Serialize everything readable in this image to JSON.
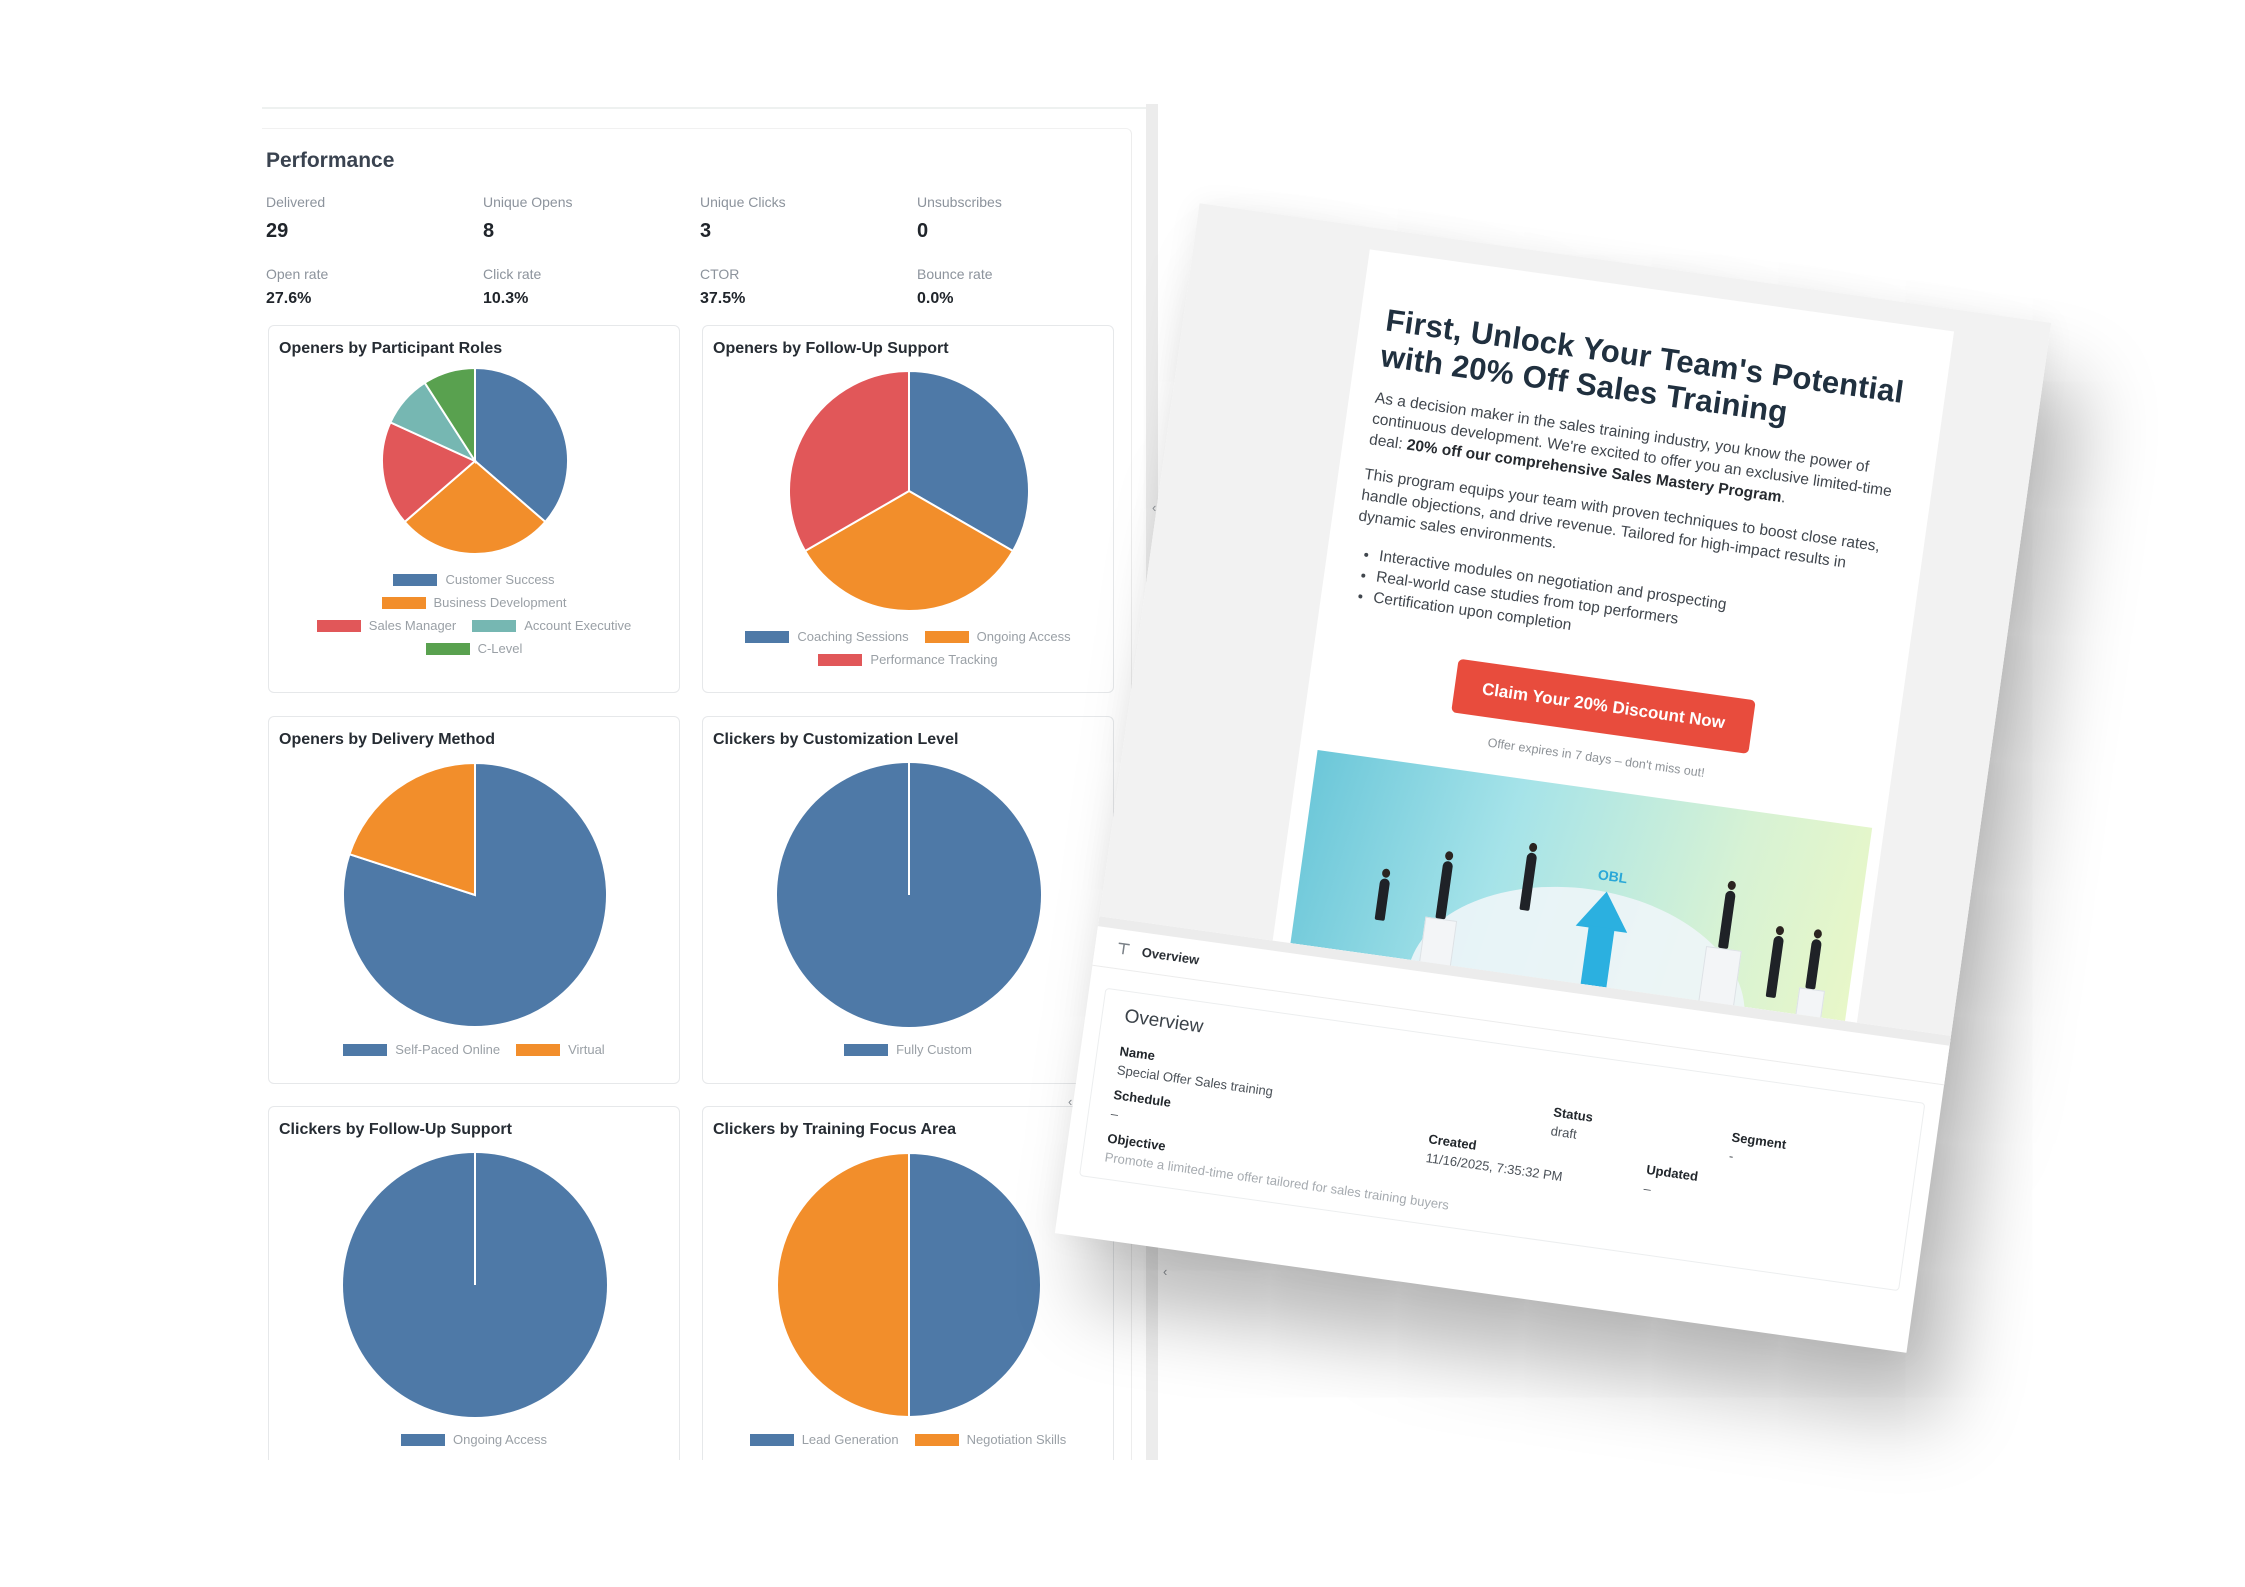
{
  "performance": {
    "title": "Performance",
    "metrics": [
      {
        "label": "Delivered",
        "value": "29"
      },
      {
        "label": "Unique Opens",
        "value": "8"
      },
      {
        "label": "Unique Clicks",
        "value": "3"
      },
      {
        "label": "Unsubscribes",
        "value": "0"
      }
    ],
    "rates": [
      {
        "label": "Open rate",
        "value": "27.6%"
      },
      {
        "label": "Click rate",
        "value": "10.3%"
      },
      {
        "label": "CTOR",
        "value": "37.5%"
      },
      {
        "label": "Bounce rate",
        "value": "0.0%"
      }
    ]
  },
  "colors": {
    "blue": "#4e79a7",
    "orange": "#f28e2b",
    "red": "#e15759",
    "teal": "#76b7b2",
    "green": "#59a14f",
    "cta": "#e84c3d"
  },
  "chart_data": [
    {
      "type": "pie",
      "title": "Openers by Participant Roles",
      "categories": [
        "Customer Success",
        "Business Development",
        "Sales Manager",
        "Account Executive",
        "C-Level"
      ],
      "values": [
        36.4,
        27.3,
        18.2,
        9.1,
        9.1
      ],
      "colors": [
        "#4e79a7",
        "#f28e2b",
        "#e15759",
        "#76b7b2",
        "#59a14f"
      ],
      "legend_position": "bottom"
    },
    {
      "type": "pie",
      "title": "Openers by Follow-Up Support",
      "categories": [
        "Coaching Sessions",
        "Ongoing Access",
        "Performance Tracking"
      ],
      "values": [
        33.3,
        33.3,
        33.3
      ],
      "colors": [
        "#4e79a7",
        "#f28e2b",
        "#e15759"
      ],
      "legend_position": "bottom"
    },
    {
      "type": "pie",
      "title": "Openers by Delivery Method",
      "categories": [
        "Self-Paced Online",
        "Virtual"
      ],
      "values": [
        80,
        20
      ],
      "colors": [
        "#4e79a7",
        "#f28e2b"
      ],
      "legend_position": "bottom"
    },
    {
      "type": "pie",
      "title": "Clickers by Customization Level",
      "categories": [
        "Fully Custom"
      ],
      "values": [
        100
      ],
      "colors": [
        "#4e79a7"
      ],
      "legend_position": "bottom"
    },
    {
      "type": "pie",
      "title": "Clickers by Follow-Up Support",
      "categories": [
        "Ongoing Access"
      ],
      "values": [
        100
      ],
      "colors": [
        "#4e79a7"
      ],
      "legend_position": "bottom"
    },
    {
      "type": "pie",
      "title": "Clickers by Training Focus Area",
      "categories": [
        "Lead Generation",
        "Negotiation Skills"
      ],
      "values": [
        50,
        50
      ],
      "colors": [
        "#4e79a7",
        "#f28e2b"
      ],
      "legend_position": "bottom"
    }
  ],
  "email": {
    "headline": "First, Unlock Your Team's Potential with 20% Off Sales Training",
    "para1_text": "As a decision maker in the sales training industry, you know the power of continuous development. We're excited to offer you an exclusive limited-time deal: ",
    "para1_bold": "20% off our comprehensive Sales Mastery Program",
    "para1_end": ".",
    "para2": "This program equips your team with proven techniques to boost close rates, handle objections, and drive revenue. Tailored for high-impact results in dynamic sales environments.",
    "bullets": [
      "Interactive modules on negotiation and prospecting",
      "Real-world case studies from top performers",
      "Certification upon completion"
    ],
    "cta_label": "Claim Your 20% Discount Now",
    "expires_note": "Offer expires in 7 days – don't miss out!",
    "hero_image_label": "OBL"
  },
  "overview_tab": {
    "icon": "pin-icon",
    "label": "Overview"
  },
  "overview": {
    "title": "Overview",
    "name_label": "Name",
    "name_value": "Special Offer Sales training",
    "schedule_label": "Schedule",
    "schedule_value": "–",
    "objective_label": "Objective",
    "objective_value": "Promote a limited-time offer tailored for sales training buyers",
    "created_label": "Created",
    "created_value": "11/16/2025, 7:35:32 PM",
    "status_label": "Status",
    "status_value": "draft",
    "updated_label": "Updated",
    "updated_value": "–",
    "segment_label": "Segment",
    "segment_value": "-"
  },
  "chevrons": {
    "collapse": "‹"
  }
}
